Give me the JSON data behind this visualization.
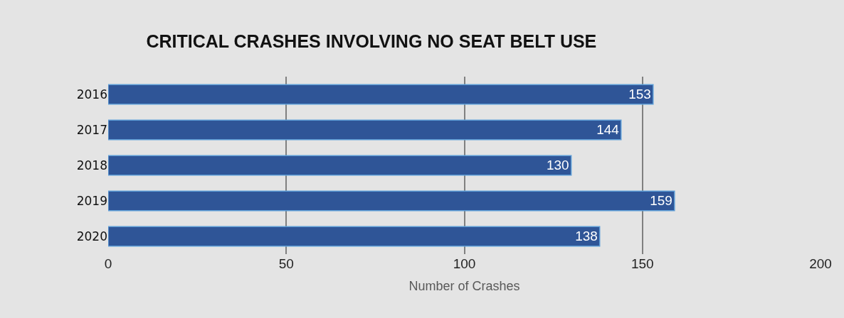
{
  "chart_data": {
    "type": "bar",
    "orientation": "horizontal",
    "title": "CRITICAL CRASHES INVOLVING NO SEAT BELT USE",
    "xlabel": "Number of Crashes",
    "categories": [
      "2016",
      "2017",
      "2018",
      "2019",
      "2020"
    ],
    "values": [
      153,
      144,
      130,
      159,
      138
    ],
    "color": "#2f5597",
    "xlim": [
      0,
      200
    ],
    "xticks": [
      0,
      50,
      100,
      150,
      200
    ],
    "grid": "x",
    "data_labels": true,
    "legend": false
  }
}
